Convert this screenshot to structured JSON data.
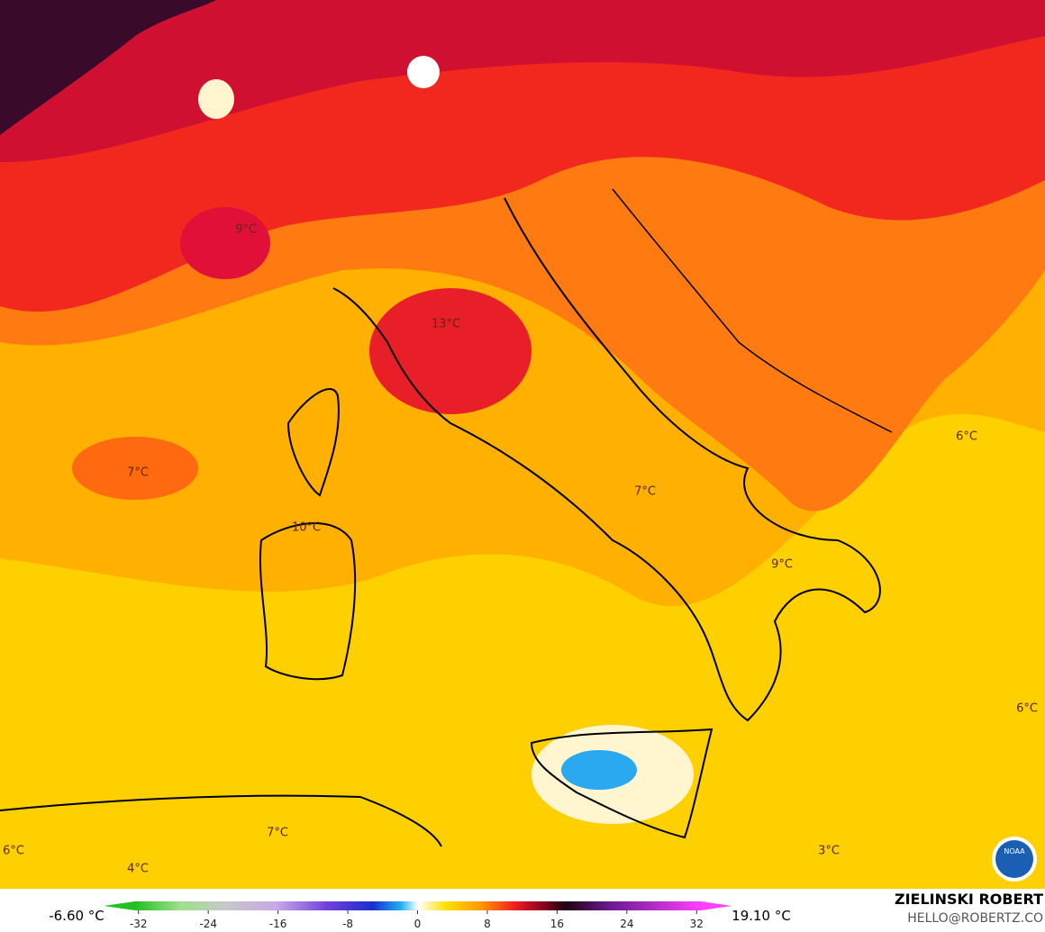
{
  "map_labels": [
    "9°C",
    "13°C",
    "7°C",
    "10°C",
    "7°C",
    "9°C",
    "6°C",
    "6°C",
    "7°C",
    "4°C",
    "3°C",
    "6°C"
  ],
  "colorbar": {
    "min_label": "-6.60 °C",
    "max_label": "19.10 °C",
    "lim": [
      -36,
      36
    ],
    "ticks": [
      -32,
      -24,
      -16,
      -8,
      0,
      8,
      16,
      24,
      32
    ]
  },
  "credit": {
    "author": "ZIELINSKI ROBERT",
    "contact": "HELLO@ROBERTZ.CO",
    "logo": "NOAA"
  }
}
